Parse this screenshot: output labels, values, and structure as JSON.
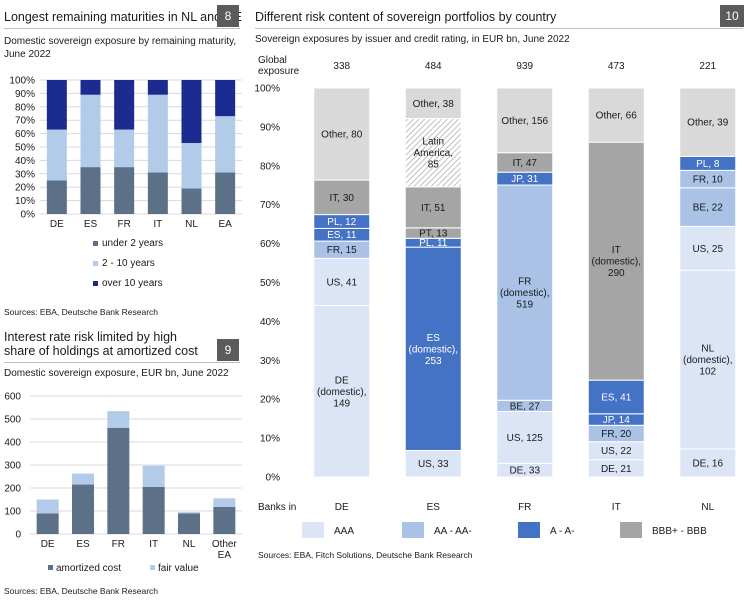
{
  "panel8": {
    "title": "Longest remaining maturities in NL and DE",
    "number": "8",
    "subtitle": "Domestic sovereign exposure by remaining maturity, June 2022",
    "source": "Sources: EBA, Deutsche Bank Research"
  },
  "panel9": {
    "title_line1": "Interest rate risk limited by high",
    "title_line2": "share of holdings at amortized cost",
    "number": "9",
    "subtitle": "Domestic sovereign exposure, EUR bn, June 2022",
    "source": "Sources: EBA, Deutsche Bank Research"
  },
  "panel10": {
    "title": "Different risk content of sovereign portfolios by country",
    "number": "10",
    "subtitle": "Sovereign exposures by issuer and credit rating, in EUR bn, June 2022",
    "source": "Sources: EBA, Fitch Solutions, Deutsche Bank Research"
  },
  "colors": {
    "under2": "#5c7088",
    "mid": "#b2cbe8",
    "over10": "#1c2b8f",
    "amortized": "#5c7088",
    "fair": "#b2cbe8",
    "AAA": "#dbe5f5",
    "AA": "#a9c2e6",
    "A": "#4472c4",
    "BBB": "#a5a5a5",
    "other": "#d9d9d9"
  },
  "chart_data": [
    {
      "type": "bar",
      "stacked": true,
      "categories": [
        "DE",
        "ES",
        "FR",
        "IT",
        "NL",
        "EA"
      ],
      "series": [
        {
          "name": "under 2 years",
          "color_key": "under2",
          "values": [
            25,
            35,
            35,
            31,
            19,
            31
          ]
        },
        {
          "name": "2 - 10 years",
          "color_key": "mid",
          "values": [
            38,
            54,
            28,
            58,
            34,
            42
          ]
        },
        {
          "name": "over 10 years",
          "color_key": "over10",
          "values": [
            37,
            11,
            37,
            11,
            47,
            27
          ]
        }
      ],
      "ylim": [
        0,
        100
      ],
      "yticks": [
        "0%",
        "10%",
        "20%",
        "30%",
        "40%",
        "50%",
        "60%",
        "70%",
        "80%",
        "90%",
        "100%"
      ],
      "legend": [
        "under 2 years",
        "2 - 10 years",
        "over 10 years"
      ]
    },
    {
      "type": "bar",
      "stacked": true,
      "categories": [
        "DE",
        "ES",
        "FR",
        "IT",
        "NL",
        "Other EA"
      ],
      "series": [
        {
          "name": "amortized cost",
          "color_key": "amortized",
          "values": [
            90,
            215,
            462,
            205,
            90,
            118
          ]
        },
        {
          "name": "fair value",
          "color_key": "fair",
          "values": [
            60,
            48,
            72,
            92,
            5,
            37
          ]
        }
      ],
      "ylim": [
        0,
        600
      ],
      "yticks": [
        "0",
        "100",
        "200",
        "300",
        "400",
        "500",
        "600"
      ],
      "legend": [
        "amortized cost",
        "fair value"
      ]
    },
    {
      "type": "bar",
      "stacked": true,
      "normalized": true,
      "ylim": [
        0,
        100
      ],
      "yticks": [
        "0%",
        "10%",
        "20%",
        "30%",
        "40%",
        "50%",
        "60%",
        "70%",
        "80%",
        "90%",
        "100%"
      ],
      "global_label": "Global exposure",
      "banks_in_label": "Banks in",
      "legend": [
        {
          "name": "AAA",
          "key": "AAA"
        },
        {
          "name": "AA - AA-",
          "key": "AA"
        },
        {
          "name": "A - A-",
          "key": "A"
        },
        {
          "name": "BBB+ - BBB",
          "key": "BBB"
        }
      ],
      "banks": [
        {
          "name": "DE",
          "total": "338",
          "segments": [
            {
              "label": "DE (domestic), 149",
              "value": 149,
              "key": "AAA"
            },
            {
              "label": "US, 41",
              "value": 41,
              "key": "AAA"
            },
            {
              "label": "FR, 15",
              "value": 15,
              "key": "AA"
            },
            {
              "label": "ES, 11",
              "value": 11,
              "key": "A"
            },
            {
              "label": "PL, 12",
              "value": 12,
              "key": "A"
            },
            {
              "label": "IT, 30",
              "value": 30,
              "key": "BBB"
            },
            {
              "label": "Other, 80",
              "value": 80,
              "key": "other"
            }
          ]
        },
        {
          "name": "ES",
          "total": "484",
          "segments": [
            {
              "label": "US, 33",
              "value": 33,
              "key": "AAA"
            },
            {
              "label": "ES (domestic), 253",
              "value": 253,
              "key": "A"
            },
            {
              "label": "PL, 11",
              "value": 11,
              "key": "A"
            },
            {
              "label": "PT, 13",
              "value": 13,
              "key": "BBB"
            },
            {
              "label": "IT, 51",
              "value": 51,
              "key": "BBB"
            },
            {
              "label": "Latin America, 85",
              "value": 85,
              "key": "hatch"
            },
            {
              "label": "Other, 38",
              "value": 38,
              "key": "other"
            }
          ]
        },
        {
          "name": "FR",
          "total": "939",
          "segments": [
            {
              "label": "DE, 33",
              "value": 33,
              "key": "AAA"
            },
            {
              "label": "US, 125",
              "value": 125,
              "key": "AAA"
            },
            {
              "label": "BE, 27",
              "value": 27,
              "key": "AA"
            },
            {
              "label": "FR (domestic), 519",
              "value": 519,
              "key": "AA"
            },
            {
              "label": "JP, 31",
              "value": 31,
              "key": "A"
            },
            {
              "label": "IT, 47",
              "value": 47,
              "key": "BBB"
            },
            {
              "label": "Other, 156",
              "value": 156,
              "key": "other"
            }
          ]
        },
        {
          "name": "IT",
          "total": "473",
          "segments": [
            {
              "label": "DE, 21",
              "value": 21,
              "key": "AAA"
            },
            {
              "label": "US, 22",
              "value": 22,
              "key": "AAA"
            },
            {
              "label": "FR, 20",
              "value": 20,
              "key": "AA"
            },
            {
              "label": "JP, 14",
              "value": 14,
              "key": "A"
            },
            {
              "label": "ES, 41",
              "value": 41,
              "key": "A"
            },
            {
              "label": "IT (domestic), 290",
              "value": 290,
              "key": "BBB"
            },
            {
              "label": "Other, 66",
              "value": 66,
              "key": "other"
            }
          ]
        },
        {
          "name": "NL",
          "total": "221",
          "segments": [
            {
              "label": "DE, 16",
              "value": 16,
              "key": "AAA"
            },
            {
              "label": "NL (domestic), 102",
              "value": 102,
              "key": "AAA"
            },
            {
              "label": "US, 25",
              "value": 25,
              "key": "AAA"
            },
            {
              "label": "BE, 22",
              "value": 22,
              "key": "AA"
            },
            {
              "label": "FR, 10",
              "value": 10,
              "key": "AA"
            },
            {
              "label": "PL, 8",
              "value": 8,
              "key": "A"
            },
            {
              "label": "Other, 39",
              "value": 39,
              "key": "other"
            }
          ]
        }
      ]
    }
  ]
}
